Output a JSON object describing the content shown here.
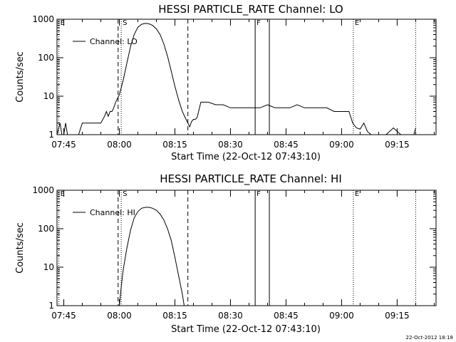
{
  "chart_data": [
    {
      "type": "line",
      "title": "HESSI PARTICLE_RATE Channel: LO",
      "xlabel": "Start Time (22-Oct-12 07:43:10)",
      "ylabel": "Counts/sec",
      "yscale": "log",
      "ylim": [
        1,
        1000
      ],
      "xlim": [
        "07:43:10",
        "09:25:30"
      ],
      "x_ticks": [
        "07:45",
        "08:00",
        "08:15",
        "08:30",
        "08:45",
        "09:00",
        "09:15"
      ],
      "y_ticks": [
        "1",
        "10",
        "100",
        "1000"
      ],
      "legend": {
        "placement": "top-left",
        "entries": [
          "Channel: LO"
        ]
      },
      "grid": false,
      "markers": [
        {
          "label": "E",
          "time": "07:43:40",
          "style": "dotted"
        },
        {
          "label": "S",
          "time": "08:00:30",
          "style": "dotted"
        },
        {
          "label": "",
          "time": "07:59:40",
          "style": "dashed"
        },
        {
          "label": "",
          "time": "08:18:30",
          "style": "dashed"
        },
        {
          "label": "F",
          "time": "08:36:40",
          "style": "solid"
        },
        {
          "label": "",
          "time": "08:40:30",
          "style": "solid"
        },
        {
          "label": "E",
          "time": "09:03:10",
          "style": "dotted"
        },
        {
          "label": "",
          "time": "09:20:00",
          "style": "dotted"
        }
      ],
      "series": [
        {
          "name": "Channel: LO",
          "x": [
            "07:43:10",
            "07:44:00",
            "07:44:30",
            "07:45:00",
            "07:45:30",
            "07:46:00",
            "07:47:00",
            "07:48:00",
            "07:49:00",
            "07:50:00",
            "07:52:00",
            "07:54:00",
            "07:55:00",
            "07:56:00",
            "07:56:30",
            "07:57:00",
            "07:57:30",
            "07:58:00",
            "07:58:30",
            "07:59:00",
            "08:00:00",
            "08:01:00",
            "08:02:00",
            "08:03:00",
            "08:04:00",
            "08:05:00",
            "08:06:00",
            "08:07:00",
            "08:08:00",
            "08:09:00",
            "08:10:00",
            "08:11:00",
            "08:12:00",
            "08:13:00",
            "08:14:00",
            "08:15:00",
            "08:16:00",
            "08:17:00",
            "08:18:00",
            "08:18:30",
            "08:19:00",
            "08:19:30",
            "08:20:00",
            "08:20:30",
            "08:21:00",
            "08:22:00",
            "08:24:00",
            "08:26:00",
            "08:28:00",
            "08:30:00",
            "08:32:00",
            "08:34:00",
            "08:36:00",
            "08:38:00",
            "08:40:00",
            "08:42:00",
            "08:44:00",
            "08:46:00",
            "08:48:00",
            "08:50:00",
            "08:52:00",
            "08:54:00",
            "08:56:00",
            "08:58:00",
            "09:00:00",
            "09:02:00",
            "09:03:00",
            "09:04:00",
            "09:05:00",
            "09:06:00",
            "09:07:00",
            "09:08:00",
            "09:10:00",
            "09:12:00",
            "09:14:00",
            "09:16:00",
            "09:18:00",
            "09:19:30",
            "09:20:00"
          ],
          "y": [
            1,
            2,
            1,
            1,
            2,
            1,
            1,
            1,
            1,
            2,
            2,
            2,
            2,
            3,
            4,
            3,
            4,
            4,
            5,
            7,
            11,
            25,
            70,
            190,
            400,
            620,
            740,
            780,
            760,
            690,
            560,
            400,
            230,
            110,
            45,
            18,
            8,
            4,
            2.5,
            2,
            1.6,
            2.2,
            2.5,
            2.5,
            2.8,
            7,
            7,
            6,
            6,
            5,
            5,
            5,
            5,
            5,
            6,
            5,
            5,
            5,
            6,
            5,
            5,
            5,
            5,
            4,
            4,
            4,
            2,
            1.5,
            1.4,
            2,
            1.2,
            1,
            1,
            1,
            1.5,
            1,
            1,
            1,
            1.5
          ]
        }
      ]
    },
    {
      "type": "line",
      "title": "HESSI PARTICLE_RATE Channel: HI",
      "xlabel": "Start Time (22-Oct-12 07:43:10)",
      "ylabel": "Counts/sec",
      "yscale": "log",
      "ylim": [
        1,
        1000
      ],
      "xlim": [
        "07:43:10",
        "09:25:30"
      ],
      "x_ticks": [
        "07:45",
        "08:00",
        "08:15",
        "08:30",
        "08:45",
        "09:00",
        "09:15"
      ],
      "y_ticks": [
        "1",
        "10",
        "100",
        "1000"
      ],
      "legend": {
        "placement": "top-left",
        "entries": [
          "Channel: HI"
        ]
      },
      "grid": false,
      "markers": [
        {
          "label": "E",
          "time": "07:43:40",
          "style": "dotted"
        },
        {
          "label": "S",
          "time": "08:00:30",
          "style": "dotted"
        },
        {
          "label": "",
          "time": "07:59:40",
          "style": "dashed"
        },
        {
          "label": "",
          "time": "08:18:30",
          "style": "dashed"
        },
        {
          "label": "F",
          "time": "08:36:40",
          "style": "solid"
        },
        {
          "label": "",
          "time": "08:40:30",
          "style": "solid"
        },
        {
          "label": "E",
          "time": "09:03:10",
          "style": "dotted"
        },
        {
          "label": "",
          "time": "09:20:00",
          "style": "dotted"
        }
      ],
      "series": [
        {
          "name": "Channel: HI",
          "x": [
            "08:00:00",
            "08:00:30",
            "08:01:00",
            "08:02:00",
            "08:03:00",
            "08:04:00",
            "08:05:00",
            "08:06:00",
            "08:07:00",
            "08:08:00",
            "08:09:00",
            "08:10:00",
            "08:11:00",
            "08:12:00",
            "08:13:00",
            "08:14:00",
            "08:15:00",
            "08:16:00",
            "08:17:00",
            "08:17:30"
          ],
          "y": [
            1,
            3,
            8,
            30,
            90,
            190,
            280,
            340,
            360,
            360,
            340,
            300,
            240,
            170,
            100,
            50,
            18,
            6,
            2,
            1
          ]
        }
      ]
    }
  ],
  "footer": {
    "timestamp": "22-Oct-2012 18:18"
  }
}
